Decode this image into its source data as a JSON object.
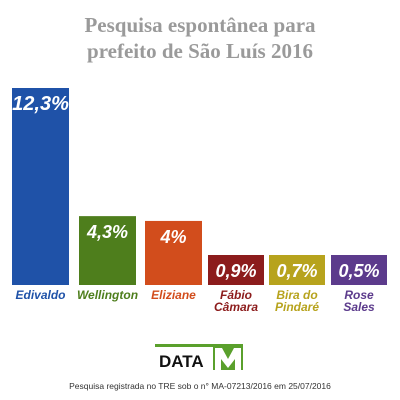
{
  "title_line1": "Pesquisa espontânea para",
  "title_line2": "prefeito de São Luís 2016",
  "chart_data": {
    "type": "bar",
    "categories": [
      "Edivaldo",
      "Wellington",
      "Eliziane",
      "Fábio Câmara",
      "Bira do Pindaré",
      "Rose Sales"
    ],
    "category_lines": [
      [
        "Edivaldo"
      ],
      [
        "Wellington"
      ],
      [
        "Eliziane"
      ],
      [
        "Fábio",
        "Câmara"
      ],
      [
        "Bira do",
        "Pindaré"
      ],
      [
        "Rose",
        "Sales"
      ]
    ],
    "values": [
      12.3,
      4.3,
      4.0,
      0.9,
      0.7,
      0.5
    ],
    "value_labels": [
      "12,3%",
      "4,3%",
      "4%",
      "0,9%",
      "0,7%",
      "0,5%"
    ],
    "colors": [
      "#1f52a8",
      "#4e7e1c",
      "#d24d1c",
      "#8c1c1c",
      "#b7a31d",
      "#5c3b8c"
    ],
    "ylim": [
      0,
      12.3
    ],
    "grid": false,
    "legend": "none"
  },
  "logo": {
    "text": "DATA",
    "mark": "M"
  },
  "footnote": "Pesquisa registrada no TRE sob o n° MA-07213/2016 em 25/07/2016"
}
